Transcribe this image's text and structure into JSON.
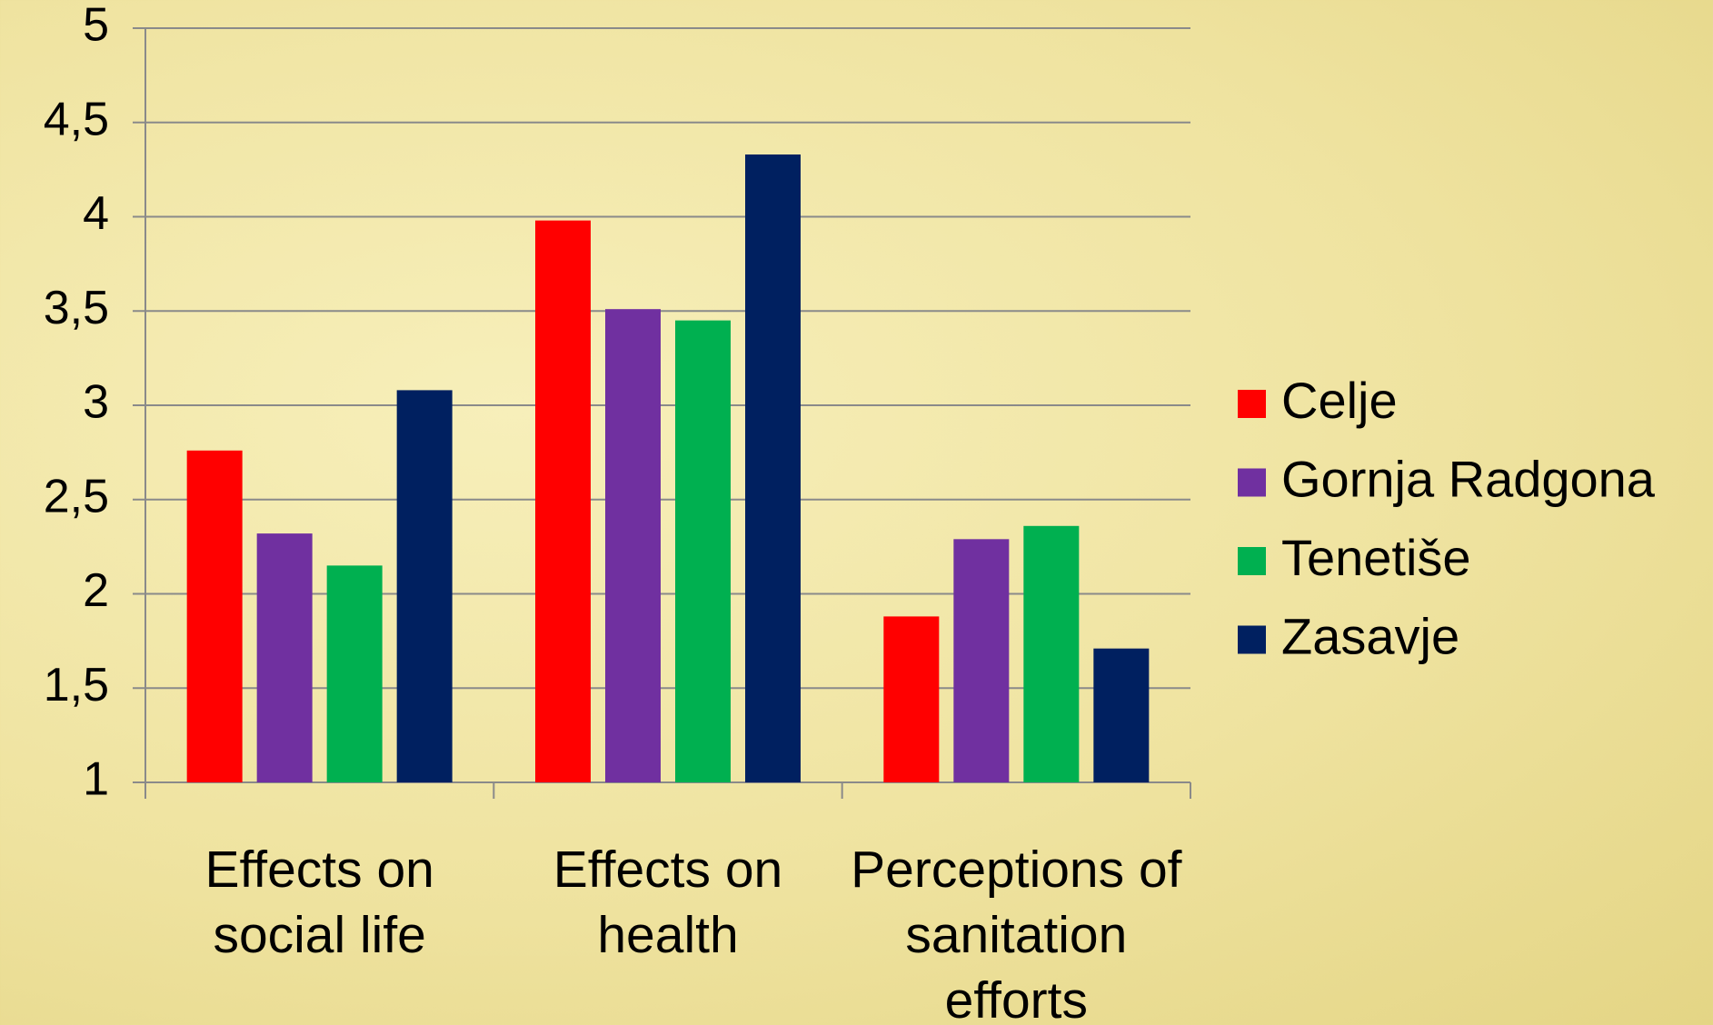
{
  "chart_data": {
    "type": "bar",
    "categories": [
      "Effects on social life",
      "Effects on health",
      "Perceptions of sanitation efforts"
    ],
    "series": [
      {
        "name": "Celje",
        "color": "#ff0000",
        "values": [
          2.76,
          3.98,
          1.88
        ]
      },
      {
        "name": "Gornja Radgona",
        "color": "#7030a0",
        "values": [
          2.32,
          3.51,
          2.29
        ]
      },
      {
        "name": "Tenetiše",
        "color": "#00b050",
        "values": [
          2.15,
          3.45,
          2.36
        ]
      },
      {
        "name": "Zasavje",
        "color": "#002060",
        "values": [
          3.08,
          4.33,
          1.71
        ]
      }
    ],
    "ylim": [
      1,
      5
    ],
    "yticks": [
      1,
      {
        "value": 1.5,
        "label": "1,5"
      },
      2,
      {
        "value": 2.5,
        "label": "2,5"
      },
      3,
      {
        "value": 3.5,
        "label": "3,5"
      },
      4,
      {
        "value": 4.5,
        "label": "4,5"
      },
      5
    ],
    "grid": true,
    "legend": "right"
  }
}
